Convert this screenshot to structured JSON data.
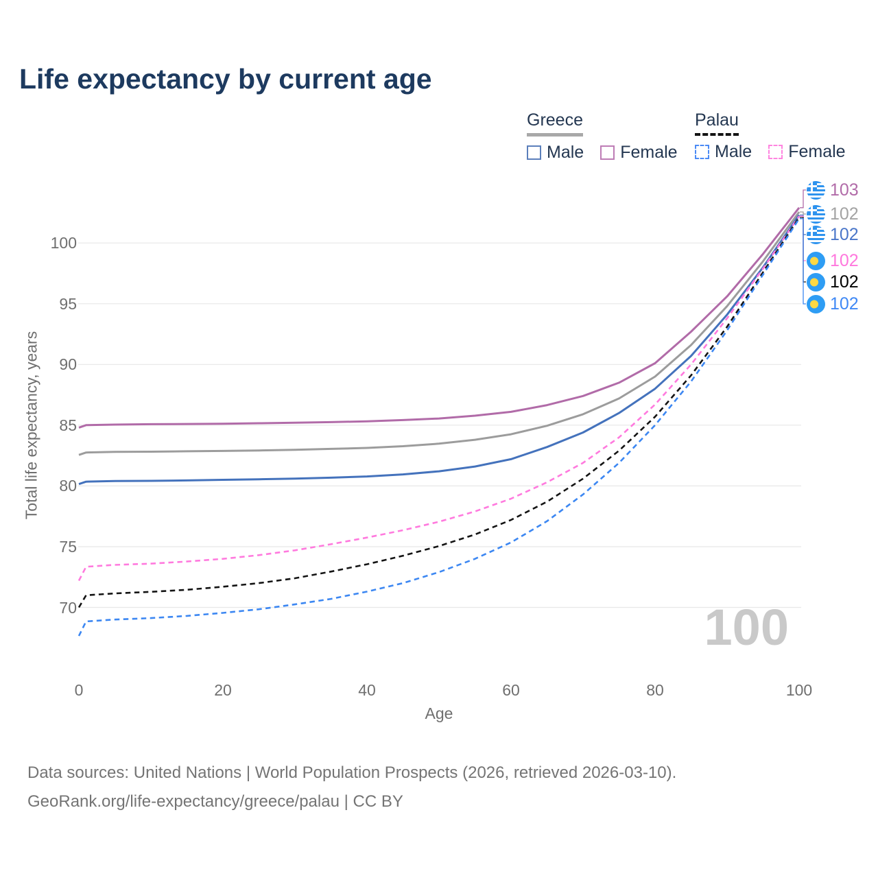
{
  "title": "Life expectancy by current age",
  "watermark": "100",
  "legend": {
    "groups": [
      {
        "name": "Greece",
        "line_style": "solid",
        "underline_color": "#a8a8a8",
        "items": [
          {
            "label": "Male",
            "color": "#5b7fbb"
          },
          {
            "label": "Female",
            "color": "#bd7cb5"
          }
        ]
      },
      {
        "name": "Palau",
        "line_style": "dashed",
        "underline_color": "#141414",
        "items": [
          {
            "label": "Male",
            "color": "#4b8bf5"
          },
          {
            "label": "Female",
            "color": "#ff85e0"
          }
        ]
      }
    ]
  },
  "footer": {
    "line1": "Data sources: United Nations | World Population Prospects (2026, retrieved 2026-03-10).",
    "line2": "GeoRank.org/life-expectancy/greece/palau | CC BY"
  },
  "chart_data": {
    "type": "line",
    "title": "Life expectancy by current age",
    "xlabel": "Age",
    "ylabel": "Total life expectancy, years",
    "x_ticks": [
      0,
      20,
      40,
      60,
      80,
      100
    ],
    "y_ticks": [
      70,
      75,
      80,
      85,
      90,
      95,
      100
    ],
    "xlim": [
      0,
      100
    ],
    "ylim": [
      66,
      104
    ],
    "grid": "horizontal",
    "legend_position": "top-right",
    "x": [
      0,
      1,
      5,
      10,
      15,
      20,
      25,
      30,
      35,
      40,
      45,
      50,
      55,
      60,
      65,
      70,
      75,
      80,
      85,
      90,
      95,
      100
    ],
    "series": [
      {
        "name": "Greece Female",
        "country": "Greece",
        "sex": "Female",
        "style": "solid",
        "color": "#b16ba8",
        "flag": "greece",
        "end_label": "103",
        "end_label_color": "#b16ba8",
        "values": [
          84.8,
          85.0,
          85.05,
          85.08,
          85.1,
          85.12,
          85.16,
          85.2,
          85.25,
          85.32,
          85.42,
          85.55,
          85.78,
          86.1,
          86.65,
          87.4,
          88.5,
          90.1,
          92.7,
          95.6,
          99.1,
          102.9
        ]
      },
      {
        "name": "Greece Both sexes",
        "country": "Greece",
        "sex": "Both",
        "style": "solid",
        "color": "#9c9c9c",
        "flag": "greece",
        "end_label": "102",
        "end_label_color": "#a3a3a3",
        "values": [
          82.55,
          82.75,
          82.8,
          82.82,
          82.85,
          82.88,
          82.92,
          82.97,
          83.05,
          83.13,
          83.27,
          83.48,
          83.8,
          84.25,
          84.95,
          85.9,
          87.2,
          89.0,
          91.6,
          94.8,
          98.5,
          102.55
        ]
      },
      {
        "name": "Greece Male",
        "country": "Greece",
        "sex": "Male",
        "style": "solid",
        "color": "#4472bc",
        "flag": "greece",
        "end_label": "102",
        "end_label_color": "#4a76c9",
        "values": [
          80.15,
          80.35,
          80.4,
          80.42,
          80.45,
          80.5,
          80.55,
          80.6,
          80.68,
          80.78,
          80.95,
          81.2,
          81.6,
          82.2,
          83.2,
          84.4,
          86.0,
          88.0,
          90.7,
          94.1,
          98.0,
          102.3
        ]
      },
      {
        "name": "Palau Female",
        "country": "Palau",
        "sex": "Female",
        "style": "dashed",
        "color": "#ff7ade",
        "flag": "palau",
        "end_label": "102",
        "end_label_color": "#ff77dd",
        "values": [
          72.2,
          73.35,
          73.5,
          73.6,
          73.78,
          74.0,
          74.3,
          74.7,
          75.2,
          75.75,
          76.35,
          77.05,
          77.9,
          78.95,
          80.3,
          81.9,
          84.0,
          86.7,
          90.0,
          93.8,
          97.9,
          102.2
        ]
      },
      {
        "name": "Palau Both sexes",
        "country": "Palau",
        "sex": "Both",
        "style": "dashed",
        "color": "#141414",
        "flag": "palau",
        "end_label": "102",
        "end_label_color": "#000000",
        "values": [
          70.0,
          71.0,
          71.15,
          71.28,
          71.45,
          71.7,
          72.0,
          72.4,
          72.95,
          73.55,
          74.25,
          75.05,
          76.0,
          77.2,
          78.7,
          80.6,
          82.9,
          85.7,
          89.1,
          93.1,
          97.6,
          102.1
        ]
      },
      {
        "name": "Palau Male",
        "country": "Palau",
        "sex": "Male",
        "style": "dashed",
        "color": "#3c87f2",
        "flag": "palau",
        "end_label": "102",
        "end_label_color": "#3f88f5",
        "values": [
          67.65,
          68.85,
          69.0,
          69.12,
          69.3,
          69.55,
          69.85,
          70.25,
          70.7,
          71.3,
          72.0,
          72.9,
          74.0,
          75.35,
          77.1,
          79.3,
          81.9,
          85.0,
          88.6,
          92.8,
          97.4,
          102.0
        ]
      }
    ]
  }
}
